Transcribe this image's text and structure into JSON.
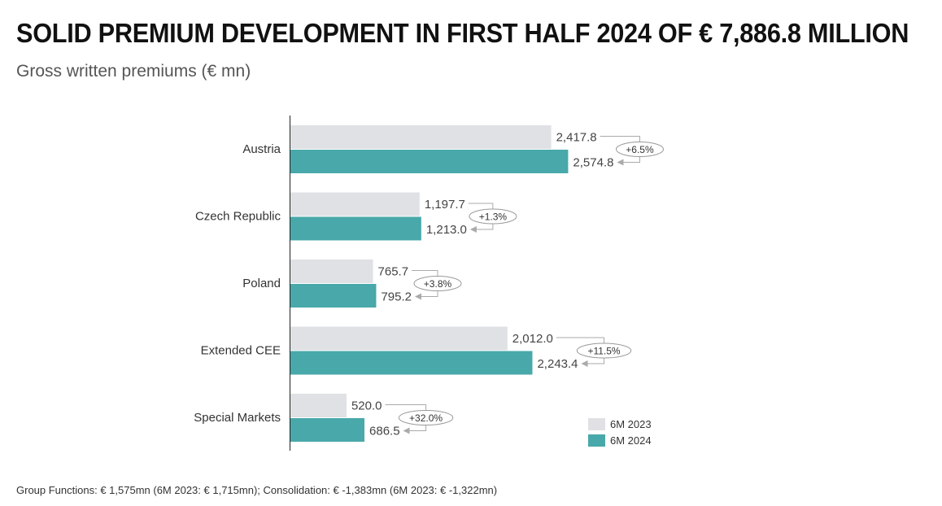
{
  "title": "SOLID PREMIUM DEVELOPMENT IN FIRST HALF 2024 OF € 7,886.8 MILLION",
  "subtitle": "Gross written premiums (€ mn)",
  "footnote": "Group Functions: € 1,575mn (6M 2023: € 1,715mn); Consolidation: € -1,383mn (6M 2023: € -1,322mn)",
  "colors": {
    "prev": "#dfe1e4",
    "curr": "#48a8aa",
    "connector": "#aaaaaa",
    "text": "#444444"
  },
  "chart_data": {
    "type": "bar",
    "orientation": "horizontal",
    "categories": [
      "Austria",
      "Czech Republic",
      "Poland",
      "Extended CEE",
      "Special Markets"
    ],
    "series": [
      {
        "name": "6M 2023",
        "values": [
          2417.8,
          1197.7,
          765.7,
          2012.0,
          520.0
        ],
        "labels": [
          "2,417.8",
          "1,197.7",
          "765.7",
          "2,012.0",
          "520.0"
        ]
      },
      {
        "name": "6M 2024",
        "values": [
          2574.8,
          1213.0,
          795.2,
          2243.4,
          686.5
        ],
        "labels": [
          "2,574.8",
          "1,213.0",
          "795.2",
          "2,243.4",
          "686.5"
        ]
      }
    ],
    "changes": [
      "+6.5%",
      "+1.3%",
      "+3.8%",
      "+11.5%",
      "+32.0%"
    ],
    "legend_position": "bottom-right",
    "grid": false
  }
}
